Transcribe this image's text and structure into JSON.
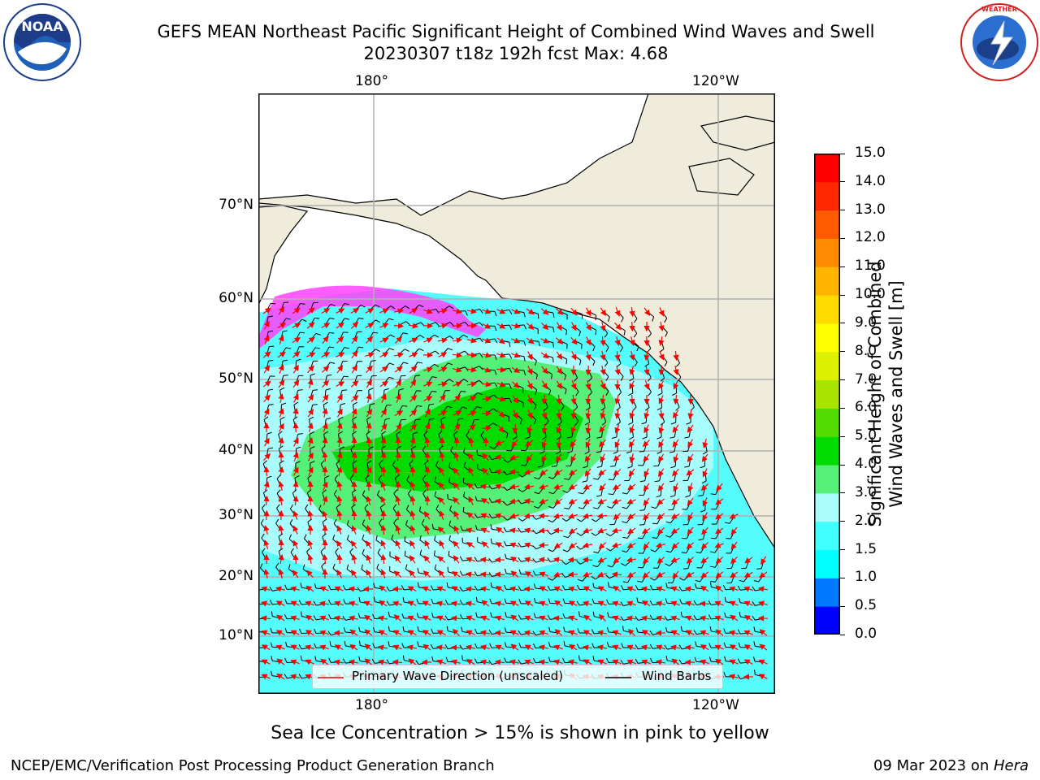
{
  "title_line1": "GEFS MEAN Northeast Pacific Significant Height of Combined Wind Waves and Swell",
  "title_line2": "20230307 t18z 192h fcst   Max: 4.68",
  "logos": {
    "left": "NOAA",
    "right": "NATIONAL WEATHER SERVICE"
  },
  "map": {
    "lon_labels": [
      "180°",
      "120°W"
    ],
    "lat_labels": [
      "70°N",
      "60°N",
      "50°N",
      "40°N",
      "30°N",
      "20°N",
      "10°N"
    ],
    "colors": {
      "land": "#efecdc",
      "ocean_low": "#54fcfc",
      "ocean_mid": "#a8fcfc",
      "ocean_3": "#54f078",
      "ocean_4": "#00dc00",
      "ice": "#ff40ff",
      "wave_arrow": "#ff0000",
      "barb": "#000000"
    }
  },
  "colorbar": {
    "ticks": [
      "0.0",
      "0.5",
      "1.0",
      "1.5",
      "2.0",
      "3.0",
      "4.0",
      "5.0",
      "6.0",
      "7.0",
      "8.0",
      "9.0",
      "10.0",
      "11.0",
      "12.0",
      "13.0",
      "14.0",
      "15.0"
    ],
    "colors": [
      "#0000ff",
      "#0078ff",
      "#00ffff",
      "#40ffff",
      "#a8fcfc",
      "#54f078",
      "#00dc00",
      "#54dc00",
      "#a8e400",
      "#dcf000",
      "#ffff00",
      "#ffdc00",
      "#ffb400",
      "#ff8c00",
      "#ff5a00",
      "#ff2800",
      "#ff0000"
    ],
    "label_line1": "Significant Height of Combined",
    "label_line2": "Wind Waves and Swell [m]"
  },
  "legend": {
    "wave_label": "Primary Wave Direction (unscaled)",
    "barb_label": "Wind Barbs"
  },
  "bottom_note": "Sea Ice Concentration > 15% is shown in pink to yellow",
  "footer_left": "NCEP/EMC/Verification Post Processing Product Generation Branch",
  "footer_right_date": "09 Mar 2023 on ",
  "footer_right_host": "Hera"
}
